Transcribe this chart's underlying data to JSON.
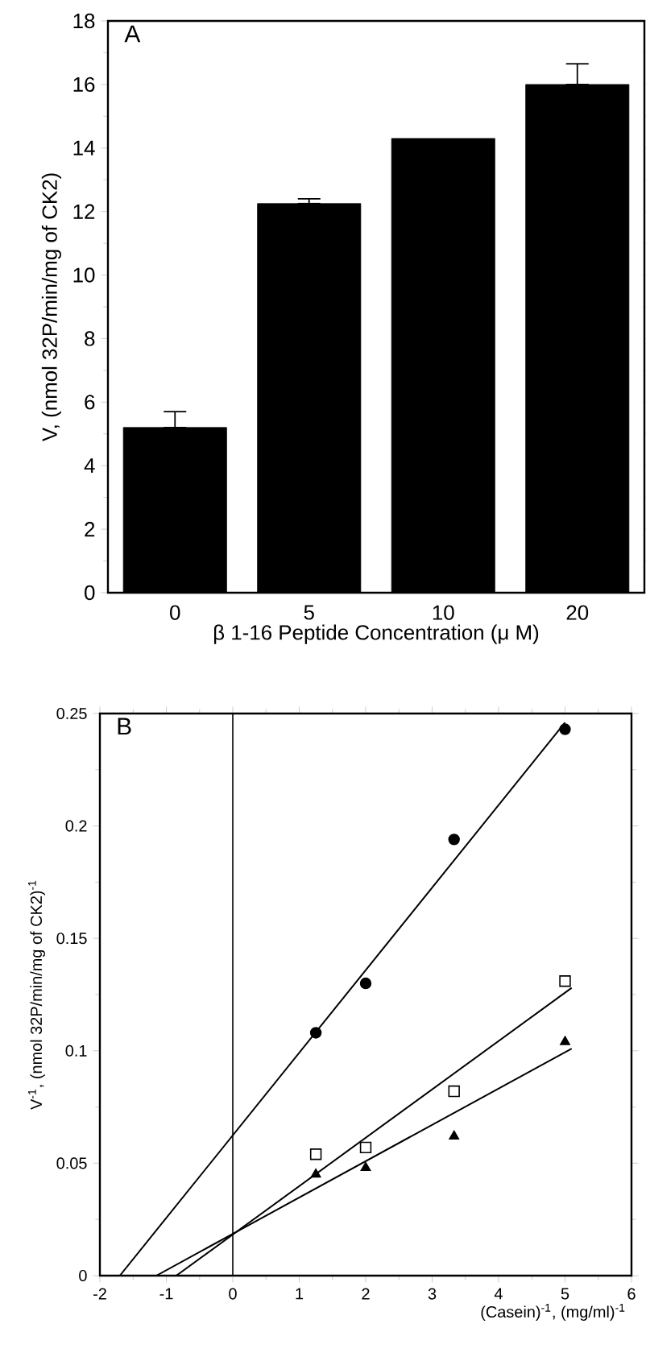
{
  "chart_data": [
    {
      "type": "bar",
      "title": "A",
      "xlabel": "β 1-16 Peptide Concentration (μ M)",
      "ylabel": "V, (nmol 32P/min/mg of CK2)",
      "categories": [
        "0",
        "5",
        "10",
        "20"
      ],
      "values": [
        5.2,
        12.25,
        14.3,
        16.0
      ],
      "errors": [
        [
          5.2,
          5.7
        ],
        [
          12.25,
          12.4
        ],
        null,
        [
          16.0,
          16.65
        ]
      ],
      "color": "#000000",
      "ylim": [
        0,
        18
      ],
      "yticks": [
        0,
        2,
        4,
        6,
        8,
        10,
        12,
        14,
        16,
        18
      ]
    },
    {
      "type": "scatter",
      "title": "B",
      "xlabel": "(Casein)$^{-1}$, (mg/ml)$^{-1}$",
      "ylabel": "V$^{-1}$, (nmol 32P/min/mg of CK2)$^{-1}$",
      "xlim": [
        -2,
        6
      ],
      "ylim": [
        0,
        0.25
      ],
      "xticks": [
        -2,
        -1,
        0,
        1,
        2,
        3,
        4,
        5,
        6
      ],
      "yticks": [
        0,
        0.05,
        0.1,
        0.15,
        0.2,
        0.25
      ],
      "series": [
        {
          "type": "scatter",
          "marker": "circle",
          "color": "#000000",
          "x": [
            1.25,
            2,
            3.33,
            5
          ],
          "values": [
            0.108,
            0.13,
            0.194,
            0.243
          ]
        },
        {
          "type": "scatter",
          "marker": "square",
          "color": "#000000",
          "x": [
            1.25,
            2,
            3.33,
            5
          ],
          "values": [
            0.054,
            0.057,
            0.082,
            0.131
          ]
        },
        {
          "type": "scatter",
          "marker": "triangle",
          "color": "#000000",
          "x": [
            1.25,
            2,
            3.33,
            5
          ],
          "values": [
            0.045,
            0.048,
            0.062,
            0.104
          ]
        },
        {
          "type": "line",
          "color": "#000000",
          "x": [
            -1.7,
            5.0
          ],
          "values": [
            0,
            0.246
          ]
        },
        {
          "type": "line",
          "color": "#000000",
          "x": [
            -0.85,
            5.1
          ],
          "values": [
            0,
            0.128
          ]
        },
        {
          "type": "line",
          "color": "#000000",
          "x": [
            -1.15,
            5.1
          ],
          "values": [
            0,
            0.101
          ]
        }
      ],
      "ref_lines": [
        {
          "axis": "x",
          "value": 0,
          "color": "#000000"
        }
      ]
    }
  ]
}
